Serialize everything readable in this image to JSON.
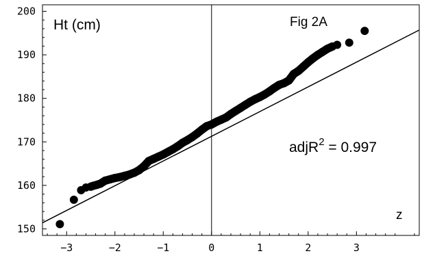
{
  "chart_data": {
    "type": "scatter",
    "title": "Fig 2A",
    "xlabel": "z",
    "ylabel": "Ht (cm)",
    "xlim": [
      -3.5,
      4.3
    ],
    "ylim": [
      148.5,
      201.5
    ],
    "x_ticks": [
      "-3",
      "-2",
      "-1",
      "0",
      "1",
      "2",
      "3"
    ],
    "y_ticks": [
      "150",
      "160",
      "170",
      "180",
      "190",
      "200"
    ],
    "grid": false,
    "annotation": {
      "prefix": "adjR",
      "superscript": "2",
      "suffix": " = 0.997"
    },
    "fit_line": {
      "x": [
        -3.5,
        4.3
      ],
      "y": [
        151.4,
        195.7
      ]
    },
    "series": [
      {
        "values": [
          [
            -3.14,
            151.1
          ],
          [
            -2.85,
            156.7
          ],
          [
            -2.7,
            158.9
          ],
          [
            -2.6,
            159.5
          ],
          [
            -2.5,
            159.7
          ],
          [
            -2.45,
            159.9
          ],
          [
            -2.38,
            160.1
          ],
          [
            -2.3,
            160.4
          ],
          [
            -2.2,
            161.1
          ],
          [
            -2.1,
            161.4
          ],
          [
            -2.0,
            161.7
          ],
          [
            -1.9,
            161.9
          ],
          [
            -1.8,
            162.2
          ],
          [
            -1.7,
            162.5
          ],
          [
            -1.6,
            162.9
          ],
          [
            -1.5,
            163.5
          ],
          [
            -1.4,
            164.4
          ],
          [
            -1.3,
            165.6
          ],
          [
            -1.2,
            166.1
          ],
          [
            -1.1,
            166.6
          ],
          [
            -1.0,
            167.1
          ],
          [
            -0.9,
            167.7
          ],
          [
            -0.8,
            168.3
          ],
          [
            -0.7,
            169.0
          ],
          [
            -0.6,
            169.8
          ],
          [
            -0.5,
            170.4
          ],
          [
            -0.4,
            171.1
          ],
          [
            -0.3,
            171.9
          ],
          [
            -0.2,
            172.8
          ],
          [
            -0.1,
            173.6
          ],
          [
            0.0,
            174.0
          ],
          [
            0.1,
            174.6
          ],
          [
            0.2,
            175.1
          ],
          [
            0.3,
            175.6
          ],
          [
            0.4,
            176.4
          ],
          [
            0.5,
            177.1
          ],
          [
            0.6,
            177.8
          ],
          [
            0.7,
            178.5
          ],
          [
            0.8,
            179.2
          ],
          [
            0.9,
            179.8
          ],
          [
            1.0,
            180.3
          ],
          [
            1.1,
            180.9
          ],
          [
            1.2,
            181.6
          ],
          [
            1.3,
            182.4
          ],
          [
            1.4,
            183.1
          ],
          [
            1.5,
            183.5
          ],
          [
            1.6,
            184.1
          ],
          [
            1.7,
            185.6
          ],
          [
            1.8,
            186.3
          ],
          [
            1.9,
            187.3
          ],
          [
            2.0,
            188.3
          ],
          [
            2.1,
            189.2
          ],
          [
            2.2,
            190.0
          ],
          [
            2.3,
            190.7
          ],
          [
            2.4,
            191.4
          ],
          [
            2.5,
            191.9
          ],
          [
            2.6,
            192.3
          ],
          [
            2.85,
            192.8
          ],
          [
            3.17,
            195.5
          ]
        ]
      }
    ]
  }
}
